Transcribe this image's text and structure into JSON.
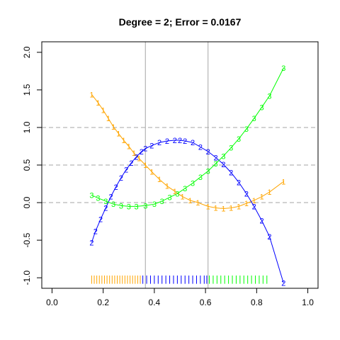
{
  "chart_data": {
    "type": "line",
    "title": "Degree = 2; Error = 0.0167",
    "xlabel": "",
    "ylabel": "",
    "xlim": [
      -0.04,
      1.04
    ],
    "ylim": [
      -1.14,
      2.14
    ],
    "x_ticks": [
      0.0,
      0.2,
      0.4,
      0.6,
      0.8,
      1.0
    ],
    "x_tick_labels": [
      "0.0",
      "0.2",
      "0.4",
      "0.6",
      "0.8",
      "1.0"
    ],
    "y_ticks": [
      -1.0,
      -0.5,
      0.0,
      0.5,
      1.0,
      1.5,
      2.0
    ],
    "y_tick_labels": [
      "-1.0",
      "-0.5",
      "0.0",
      "0.5",
      "1.0",
      "1.5",
      "2.0"
    ],
    "hlines": [
      0,
      0.5,
      1
    ],
    "vlines": [
      0.365,
      0.61
    ],
    "series": [
      {
        "symbol": "1",
        "color": "#ffa500",
        "x": [
          0.155,
          0.18,
          0.2,
          0.22,
          0.24,
          0.26,
          0.28,
          0.3,
          0.32,
          0.34,
          0.365,
          0.39,
          0.42,
          0.45,
          0.48,
          0.51,
          0.54,
          0.57,
          0.61,
          0.64,
          0.67,
          0.7,
          0.73,
          0.76,
          0.79,
          0.82,
          0.85,
          0.905
        ],
        "y": [
          1.44,
          1.33,
          1.23,
          1.12,
          1.01,
          0.92,
          0.83,
          0.75,
          0.66,
          0.59,
          0.5,
          0.41,
          0.31,
          0.22,
          0.15,
          0.08,
          0.03,
          0.0,
          -0.05,
          -0.07,
          -0.08,
          -0.07,
          -0.05,
          -0.01,
          0.03,
          0.08,
          0.14,
          0.28
        ]
      },
      {
        "symbol": "2",
        "color": "#0000ff",
        "x": [
          0.155,
          0.17,
          0.19,
          0.21,
          0.23,
          0.25,
          0.27,
          0.29,
          0.31,
          0.33,
          0.35,
          0.365,
          0.39,
          0.42,
          0.45,
          0.48,
          0.5,
          0.52,
          0.55,
          0.58,
          0.61,
          0.64,
          0.67,
          0.7,
          0.73,
          0.76,
          0.79,
          0.82,
          0.85,
          0.905
        ],
        "y": [
          -0.53,
          -0.38,
          -0.22,
          -0.07,
          0.08,
          0.21,
          0.33,
          0.44,
          0.53,
          0.61,
          0.68,
          0.72,
          0.76,
          0.8,
          0.82,
          0.83,
          0.83,
          0.82,
          0.8,
          0.74,
          0.68,
          0.6,
          0.51,
          0.4,
          0.27,
          0.12,
          -0.05,
          -0.24,
          -0.45,
          -1.07
        ]
      },
      {
        "symbol": "3",
        "color": "#00ff00",
        "x": [
          0.155,
          0.18,
          0.21,
          0.24,
          0.27,
          0.3,
          0.33,
          0.365,
          0.4,
          0.43,
          0.46,
          0.49,
          0.52,
          0.55,
          0.58,
          0.61,
          0.64,
          0.67,
          0.7,
          0.73,
          0.76,
          0.79,
          0.82,
          0.85,
          0.905
        ],
        "y": [
          0.1,
          0.06,
          0.02,
          -0.02,
          -0.04,
          -0.05,
          -0.05,
          -0.04,
          -0.02,
          0.02,
          0.07,
          0.12,
          0.19,
          0.26,
          0.34,
          0.42,
          0.52,
          0.62,
          0.73,
          0.85,
          0.98,
          1.12,
          1.27,
          1.42,
          1.79
        ]
      }
    ],
    "rug": [
      {
        "color": "#ffa500",
        "x": [
          0.155,
          0.165,
          0.175,
          0.185,
          0.195,
          0.205,
          0.215,
          0.225,
          0.235,
          0.245,
          0.255,
          0.265,
          0.275,
          0.285,
          0.295,
          0.305,
          0.315,
          0.325,
          0.335,
          0.345
        ]
      },
      {
        "color": "#0000ff",
        "x": [
          0.355,
          0.37,
          0.385,
          0.4,
          0.415,
          0.43,
          0.445,
          0.46,
          0.475,
          0.49,
          0.505,
          0.52,
          0.535,
          0.55,
          0.565,
          0.58,
          0.595,
          0.605
        ]
      },
      {
        "color": "#00ff00",
        "x": [
          0.615,
          0.63,
          0.645,
          0.66,
          0.675,
          0.69,
          0.705,
          0.72,
          0.735,
          0.75,
          0.765,
          0.78,
          0.795,
          0.81,
          0.825,
          0.84
        ]
      }
    ]
  }
}
